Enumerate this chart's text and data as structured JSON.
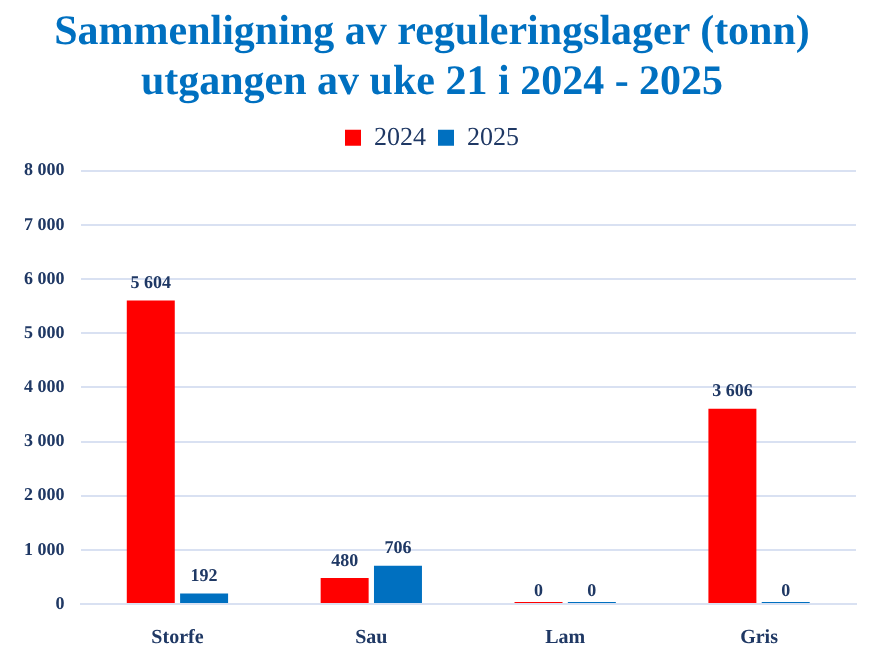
{
  "chart_data": {
    "type": "bar",
    "title": "Sammenligning av reguleringslager (tonn)\nutgangen av uke 21 i 2024 - 2025",
    "categories": [
      "Storfe",
      "Sau",
      "Lam",
      "Gris"
    ],
    "series": [
      {
        "name": "2024",
        "color": "#ff0000",
        "values": [
          5604,
          480,
          0,
          3606
        ],
        "value_labels": [
          "5 604",
          "480",
          "0",
          "3 606"
        ]
      },
      {
        "name": "2025",
        "color": "#0070c0",
        "values": [
          192,
          706,
          0,
          0
        ],
        "value_labels": [
          "192",
          "706",
          "0",
          "0"
        ]
      }
    ],
    "ylim": [
      0,
      8000
    ],
    "yticks": [
      0,
      {
        "value": 1000,
        "label": "1 000"
      },
      {
        "value": 2000,
        "label": "2 000"
      },
      {
        "value": 3000,
        "label": "3 000"
      },
      {
        "value": 4000,
        "label": "4 000"
      },
      {
        "value": 5000,
        "label": "5 000"
      },
      {
        "value": 6000,
        "label": "6 000"
      },
      {
        "value": 7000,
        "label": "7 000"
      },
      {
        "value": 8000,
        "label": "8 000"
      }
    ],
    "grid": "y",
    "legend": "top"
  }
}
